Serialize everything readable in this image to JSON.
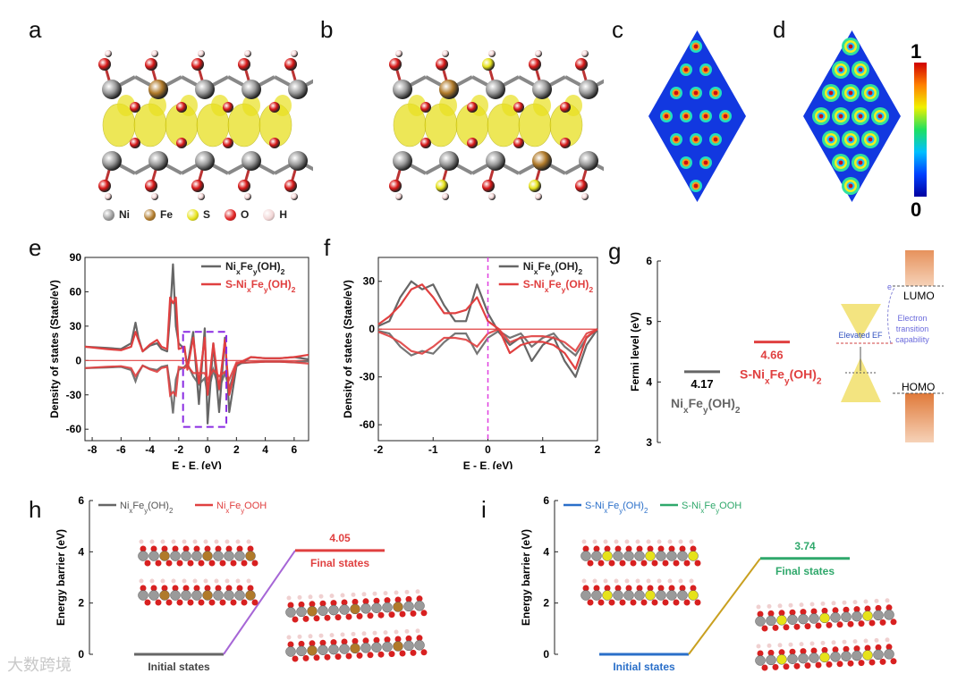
{
  "panel_labels": [
    "a",
    "b",
    "c",
    "d",
    "e",
    "f",
    "g",
    "h",
    "i"
  ],
  "legend_atoms": [
    {
      "symbol": "Ni",
      "color": "#9a9a9a"
    },
    {
      "symbol": "Fe",
      "color": "#b07a2a"
    },
    {
      "symbol": "S",
      "color": "#e6e21a"
    },
    {
      "symbol": "O",
      "color": "#e02020"
    },
    {
      "symbol": "H",
      "color": "#f2d6d6"
    }
  ],
  "colorbar": {
    "max_label": "1",
    "min_label": "0"
  },
  "watermark": "大数跨境",
  "chart_data": [
    {
      "id": "e",
      "type": "line",
      "xlabel": "E - Ef (eV)",
      "ylabel": "Density of states (State/eV)",
      "xlim": [
        -8.5,
        7
      ],
      "ylim": [
        -70,
        90
      ],
      "xticks": [
        -8,
        -6,
        -4,
        -2,
        0,
        2,
        4,
        6
      ],
      "yticks": [
        -60,
        -30,
        0,
        30,
        60,
        90
      ],
      "series": [
        {
          "name": "NixFey(OH)2",
          "color": "#666666",
          "x": [
            -8.5,
            -7,
            -6,
            -5.3,
            -5,
            -4.8,
            -4.5,
            -4,
            -3.5,
            -3.2,
            -2.8,
            -2.6,
            -2.4,
            -2.2,
            -2,
            -1.6,
            -1.4,
            -1,
            -0.6,
            -0.2,
            0,
            0.4,
            0.8,
            1.2,
            1.5,
            2,
            3,
            4,
            5,
            6,
            7
          ],
          "y": [
            12,
            11,
            10,
            15,
            33,
            20,
            8,
            13,
            15,
            10,
            8,
            40,
            84,
            30,
            15,
            10,
            -5,
            25,
            -38,
            28,
            -55,
            15,
            -45,
            20,
            -45,
            -5,
            3,
            2,
            2,
            3,
            1
          ]
        },
        {
          "name": "S-NixFey(OH)2",
          "color": "#e04040",
          "x": [
            -8.5,
            -7,
            -6,
            -5.3,
            -5,
            -4.8,
            -4.5,
            -4,
            -3.5,
            -3.2,
            -2.8,
            -2.6,
            -2.4,
            -2.2,
            -2,
            -1.6,
            -1.4,
            -1,
            -0.6,
            -0.2,
            0,
            0.4,
            0.8,
            1.2,
            1.5,
            2,
            3,
            4,
            5,
            6,
            7
          ],
          "y": [
            12,
            10,
            9,
            12,
            25,
            18,
            8,
            14,
            18,
            12,
            10,
            55,
            50,
            55,
            10,
            12,
            -8,
            20,
            -20,
            20,
            -30,
            15,
            -25,
            18,
            -30,
            -3,
            3,
            2,
            2,
            3,
            5
          ]
        }
      ]
    },
    {
      "id": "f",
      "type": "line",
      "xlabel": "E - Ef (eV)",
      "ylabel": "Density of states (State/eV)",
      "xlim": [
        -2,
        2
      ],
      "ylim": [
        -70,
        45
      ],
      "xticks": [
        -2,
        -1,
        0,
        1,
        2
      ],
      "yticks": [
        -60,
        -30,
        0,
        30
      ],
      "series": [
        {
          "name": "NixFey(OH)2",
          "color": "#666666",
          "x": [
            -2,
            -1.8,
            -1.6,
            -1.4,
            -1.2,
            -1.0,
            -0.8,
            -0.6,
            -0.4,
            -0.2,
            0,
            0.2,
            0.4,
            0.6,
            0.8,
            1.0,
            1.2,
            1.4,
            1.6,
            1.8,
            2
          ],
          "y": [
            2,
            5,
            20,
            30,
            25,
            28,
            15,
            5,
            5,
            28,
            10,
            -2,
            -10,
            -5,
            -20,
            -10,
            -5,
            -20,
            -30,
            -10,
            0
          ]
        },
        {
          "name": "S-NixFey(OH)2",
          "color": "#e04040",
          "x": [
            -2,
            -1.8,
            -1.6,
            -1.4,
            -1.2,
            -1.0,
            -0.8,
            -0.6,
            -0.4,
            -0.2,
            0,
            0.2,
            0.4,
            0.6,
            0.8,
            1.0,
            1.2,
            1.4,
            1.6,
            1.8,
            2
          ],
          "y": [
            3,
            8,
            15,
            25,
            28,
            20,
            10,
            10,
            12,
            20,
            5,
            0,
            -15,
            -10,
            -8,
            -8,
            -10,
            -15,
            -25,
            -5,
            0
          ]
        }
      ]
    },
    {
      "id": "g",
      "type": "level",
      "ylabel": "Fermi level (eV)",
      "ylim": [
        3,
        6
      ],
      "yticks": [
        3,
        4,
        5,
        6
      ],
      "levels": [
        {
          "name": "NixFey(OH)2",
          "value": 4.17,
          "value_label": "4.17",
          "color": "#666666"
        },
        {
          "name": "S-NixFey(OH)2",
          "value": 4.66,
          "value_label": "4.66",
          "color": "#e04040"
        }
      ],
      "annotations": {
        "lumo": "LUMO",
        "homo": "HOMO",
        "ef": "e",
        "elevated": "Elevated EF",
        "transition": "Electron transition capability"
      }
    },
    {
      "id": "h",
      "type": "energy_profile",
      "ylabel": "Energy barrier (eV)",
      "ylim": [
        0,
        6
      ],
      "yticks": [
        0,
        2,
        4,
        6
      ],
      "legend": [
        {
          "name": "NixFey(OH)2",
          "color": "#666666"
        },
        {
          "name": "NixFeyOOH",
          "color": "#e04040"
        }
      ],
      "initial": {
        "label": "Initial states",
        "value": 0,
        "color": "#666666"
      },
      "final": {
        "label": "Final states",
        "value": 4.05,
        "value_label": "4.05",
        "color": "#e04040"
      },
      "connector_color": "#a666d6"
    },
    {
      "id": "i",
      "type": "energy_profile",
      "ylabel": "Energy barrier (eV)",
      "ylim": [
        0,
        6
      ],
      "yticks": [
        0,
        2,
        4,
        6
      ],
      "legend": [
        {
          "name": "S-NixFey(OH)2",
          "color": "#2a6fc9"
        },
        {
          "name": "S-NixFeyOOH",
          "color": "#2fa86b"
        }
      ],
      "initial": {
        "label": "Initial states",
        "value": 0,
        "color": "#2a6fc9"
      },
      "final": {
        "label": "Final states",
        "value": 3.74,
        "value_label": "3.74",
        "color": "#2fa86b"
      },
      "connector_color": "#c9a020"
    }
  ]
}
